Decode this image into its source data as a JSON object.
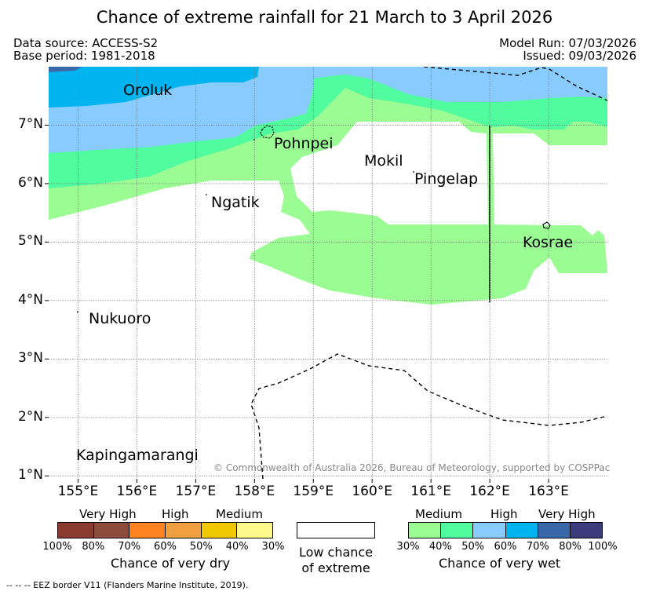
{
  "title": "Chance of extreme rainfall for 21 March to 3 April 2026",
  "meta": {
    "data_source": "Data source: ACCESS-S2",
    "base_period": "Base period: 1981-2018",
    "model_run": "Model Run: 07/03/2026",
    "issued": "Issued: 09/03/2026"
  },
  "map": {
    "lon_range": [
      154.5,
      164.0
    ],
    "lat_range": [
      0.95,
      8.0
    ],
    "lon_ticks": [
      "155°E",
      "156°E",
      "157°E",
      "158°E",
      "159°E",
      "160°E",
      "161°E",
      "162°E",
      "163°E"
    ],
    "lat_ticks": [
      "1°N",
      "2°N",
      "3°N",
      "4°N",
      "5°N",
      "6°N",
      "7°N"
    ],
    "places": [
      {
        "name": "Oroluk"
      },
      {
        "name": "Pohnpei"
      },
      {
        "name": "Mokil"
      },
      {
        "name": "Pingelap"
      },
      {
        "name": "Ngatik"
      },
      {
        "name": "Kosrae"
      },
      {
        "name": "Nukuoro"
      },
      {
        "name": "Kapingamarangi"
      }
    ],
    "copyright": "© Commonwealth of Australia 2026, Bureau of Meteorology, supported by COSPPac"
  },
  "legend": {
    "dry": {
      "categories": [
        "Very High",
        "High",
        "Medium"
      ],
      "ticks": [
        "100%",
        "80%",
        "70%",
        "60%",
        "50%",
        "40%",
        "30%"
      ],
      "colors": [
        "#8b3a30",
        "#8b4c3c",
        "#ff8320",
        "#f0a040",
        "#f0c800",
        "#fff88a"
      ],
      "label": "Chance of very dry"
    },
    "neutral": {
      "label_line1": "Low chance",
      "label_line2": "of extreme"
    },
    "wet": {
      "categories": [
        "Medium",
        "High",
        "Very High"
      ],
      "ticks": [
        "30%",
        "40%",
        "50%",
        "60%",
        "70%",
        "80%",
        "100%"
      ],
      "colors": [
        "#9bfc94",
        "#50fc9e",
        "#88ccff",
        "#00b4f0",
        "#3868a8",
        "#3c3c7c"
      ],
      "label": "Chance of very wet"
    }
  },
  "footnote": "--  --  -- EEZ border V11 (Flanders Marine Institute, 2019)."
}
